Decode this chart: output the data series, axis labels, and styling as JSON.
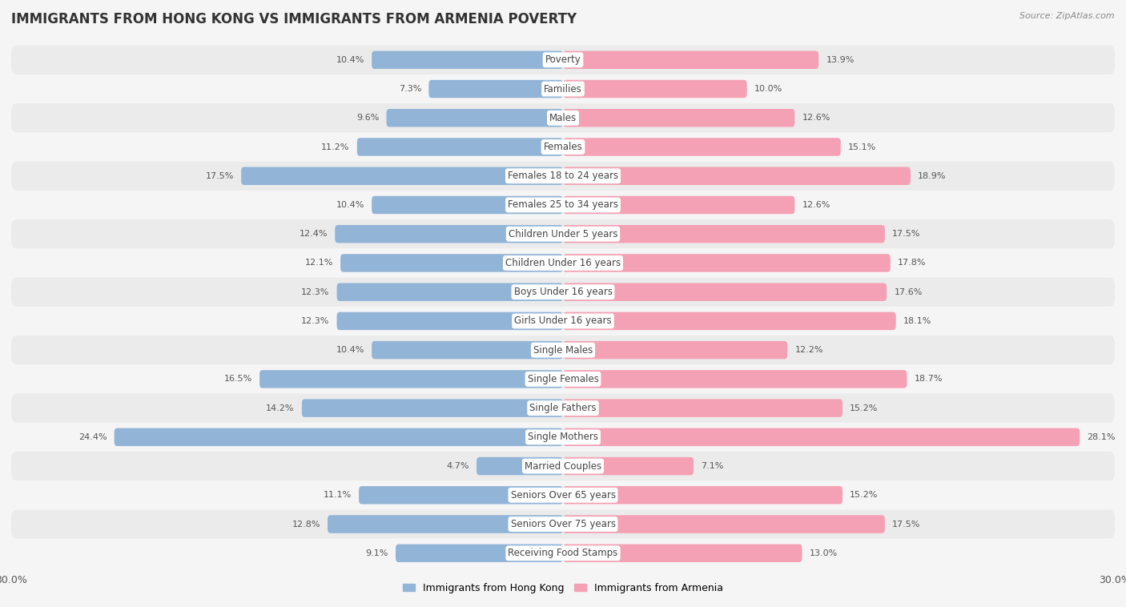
{
  "title": "IMMIGRANTS FROM HONG KONG VS IMMIGRANTS FROM ARMENIA POVERTY",
  "source": "Source: ZipAtlas.com",
  "categories": [
    "Poverty",
    "Families",
    "Males",
    "Females",
    "Females 18 to 24 years",
    "Females 25 to 34 years",
    "Children Under 5 years",
    "Children Under 16 years",
    "Boys Under 16 years",
    "Girls Under 16 years",
    "Single Males",
    "Single Females",
    "Single Fathers",
    "Single Mothers",
    "Married Couples",
    "Seniors Over 65 years",
    "Seniors Over 75 years",
    "Receiving Food Stamps"
  ],
  "hong_kong_values": [
    10.4,
    7.3,
    9.6,
    11.2,
    17.5,
    10.4,
    12.4,
    12.1,
    12.3,
    12.3,
    10.4,
    16.5,
    14.2,
    24.4,
    4.7,
    11.1,
    12.8,
    9.1
  ],
  "armenia_values": [
    13.9,
    10.0,
    12.6,
    15.1,
    18.9,
    12.6,
    17.5,
    17.8,
    17.6,
    18.1,
    12.2,
    18.7,
    15.2,
    28.1,
    7.1,
    15.2,
    17.5,
    13.0
  ],
  "hk_color": "#92b4d7",
  "armenia_color": "#f4a0b5",
  "hk_label": "Immigrants from Hong Kong",
  "armenia_label": "Immigrants from Armenia",
  "x_max": 30,
  "row_bg_even": "#ebebeb",
  "row_bg_odd": "#f5f5f5",
  "background_color": "#f5f5f5",
  "title_fontsize": 12,
  "cat_fontsize": 8.5,
  "value_fontsize": 8,
  "axis_fontsize": 9,
  "legend_fontsize": 9
}
